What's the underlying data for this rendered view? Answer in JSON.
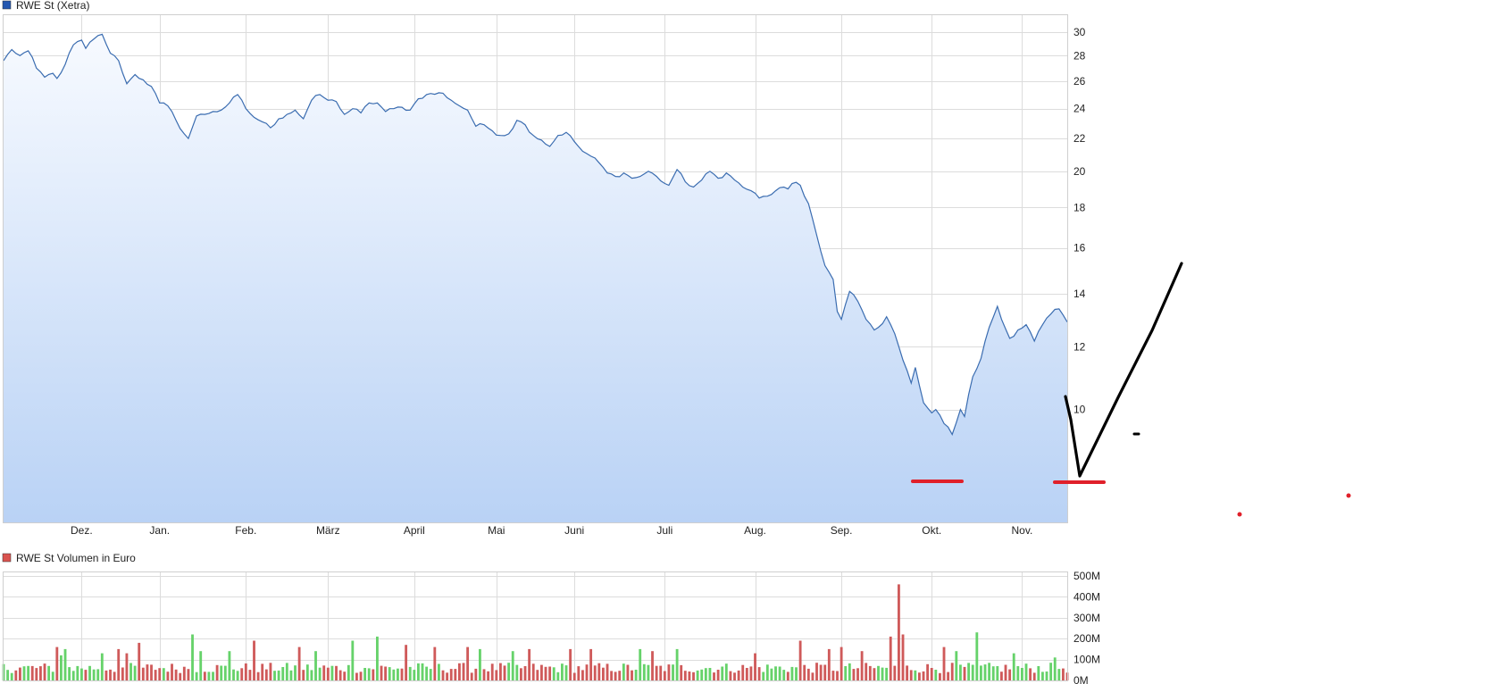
{
  "chart_data": [
    {
      "type": "area",
      "legend": "RWE St (Xetra)",
      "colors": {
        "line": "#3a6cb0",
        "fill_top": "#f7faff",
        "fill_bottom": "#b9d2f5",
        "legend_swatch": "#2457b0"
      },
      "ylim": [
        7.2,
        31.5
      ],
      "y_scale": "log",
      "y_ticks": [
        "30",
        "28",
        "26",
        "24",
        "22",
        "20",
        "18",
        "16",
        "14",
        "12",
        "10"
      ],
      "y_tick_values": [
        30,
        28,
        26,
        24,
        22,
        20,
        18,
        16,
        14,
        12,
        10
      ],
      "x_months": [
        "Dez.",
        "Jan.",
        "Feb.",
        "März",
        "April",
        "Mai",
        "Juni",
        "Juli",
        "Aug.",
        "Sep.",
        "Okt.",
        "Nov."
      ],
      "x_month_index": [
        19,
        38,
        59,
        79,
        100,
        120,
        139,
        161,
        183,
        204,
        226,
        248
      ],
      "grid": true,
      "legend_position": "top-left",
      "x_count": 260,
      "price_anchors": [
        [
          0,
          27.6
        ],
        [
          2,
          28.5
        ],
        [
          4,
          28.0
        ],
        [
          6,
          28.4
        ],
        [
          8,
          27.0
        ],
        [
          10,
          26.3
        ],
        [
          12,
          26.6
        ],
        [
          13,
          26.2
        ],
        [
          15,
          27.3
        ],
        [
          17,
          28.9
        ],
        [
          19,
          29.3
        ],
        [
          20,
          28.6
        ],
        [
          22,
          29.4
        ],
        [
          24,
          29.8
        ],
        [
          26,
          28.2
        ],
        [
          28,
          27.6
        ],
        [
          30,
          25.8
        ],
        [
          32,
          26.5
        ],
        [
          34,
          26.1
        ],
        [
          36,
          25.6
        ],
        [
          38,
          24.4
        ],
        [
          40,
          24.2
        ],
        [
          42,
          23.2
        ],
        [
          44,
          22.3
        ],
        [
          45,
          22.0
        ],
        [
          47,
          23.5
        ],
        [
          49,
          23.6
        ],
        [
          51,
          23.8
        ],
        [
          53,
          23.9
        ],
        [
          55,
          24.4
        ],
        [
          57,
          25.0
        ],
        [
          59,
          24.0
        ],
        [
          61,
          23.4
        ],
        [
          63,
          23.1
        ],
        [
          65,
          22.7
        ],
        [
          67,
          23.3
        ],
        [
          69,
          23.6
        ],
        [
          71,
          23.9
        ],
        [
          73,
          23.3
        ],
        [
          75,
          24.6
        ],
        [
          77,
          25.0
        ],
        [
          79,
          24.6
        ],
        [
          81,
          24.5
        ],
        [
          83,
          23.6
        ],
        [
          85,
          24.0
        ],
        [
          87,
          23.7
        ],
        [
          89,
          24.4
        ],
        [
          91,
          24.4
        ],
        [
          93,
          23.8
        ],
        [
          95,
          24.0
        ],
        [
          97,
          24.1
        ],
        [
          99,
          23.9
        ],
        [
          101,
          24.7
        ],
        [
          103,
          25.0
        ],
        [
          107,
          25.1
        ],
        [
          109,
          24.6
        ],
        [
          111,
          24.2
        ],
        [
          113,
          23.9
        ],
        [
          115,
          22.8
        ],
        [
          117,
          22.9
        ],
        [
          119,
          22.5
        ],
        [
          121,
          22.2
        ],
        [
          123,
          22.3
        ],
        [
          125,
          23.2
        ],
        [
          127,
          22.9
        ],
        [
          129,
          22.2
        ],
        [
          131,
          21.9
        ],
        [
          133,
          21.5
        ],
        [
          135,
          22.2
        ],
        [
          137,
          22.4
        ],
        [
          139,
          21.8
        ],
        [
          141,
          21.2
        ],
        [
          143,
          20.9
        ],
        [
          145,
          20.5
        ],
        [
          147,
          19.9
        ],
        [
          149,
          19.7
        ],
        [
          151,
          19.9
        ],
        [
          153,
          19.6
        ],
        [
          155,
          19.7
        ],
        [
          157,
          20.0
        ],
        [
          159,
          19.7
        ],
        [
          161,
          19.3
        ],
        [
          162,
          19.2
        ],
        [
          164,
          20.1
        ],
        [
          166,
          19.4
        ],
        [
          168,
          19.1
        ],
        [
          170,
          19.5
        ],
        [
          172,
          20.0
        ],
        [
          174,
          19.6
        ],
        [
          176,
          19.9
        ],
        [
          178,
          19.5
        ],
        [
          180,
          19.1
        ],
        [
          182,
          18.9
        ],
        [
          184,
          18.5
        ],
        [
          186,
          18.6
        ],
        [
          188,
          18.9
        ],
        [
          190,
          19.1
        ],
        [
          191,
          19.0
        ],
        [
          192,
          19.3
        ],
        [
          194,
          19.2
        ],
        [
          195,
          18.6
        ],
        [
          196,
          18.2
        ],
        [
          198,
          16.6
        ],
        [
          200,
          15.2
        ],
        [
          202,
          14.6
        ],
        [
          203,
          13.3
        ],
        [
          204,
          13.0
        ],
        [
          206,
          14.1
        ],
        [
          208,
          13.7
        ],
        [
          210,
          13.0
        ],
        [
          212,
          12.6
        ],
        [
          213,
          12.7
        ],
        [
          215,
          13.1
        ],
        [
          216,
          12.8
        ],
        [
          218,
          12.0
        ],
        [
          220,
          11.2
        ],
        [
          221,
          10.8
        ],
        [
          222,
          11.3
        ],
        [
          224,
          10.2
        ],
        [
          226,
          9.9
        ],
        [
          227,
          10.0
        ],
        [
          229,
          9.6
        ],
        [
          230,
          9.5
        ],
        [
          231,
          9.3
        ],
        [
          233,
          10.0
        ],
        [
          234,
          9.8
        ],
        [
          236,
          11.0
        ],
        [
          238,
          11.6
        ],
        [
          240,
          12.7
        ],
        [
          242,
          13.5
        ],
        [
          243,
          13.0
        ],
        [
          245,
          12.3
        ],
        [
          247,
          12.6
        ],
        [
          249,
          12.8
        ],
        [
          251,
          12.2
        ],
        [
          253,
          12.8
        ],
        [
          255,
          13.2
        ],
        [
          257,
          13.4
        ],
        [
          259,
          12.9
        ]
      ],
      "annotations": "hand-drawn red horizontal support lines near lows and black V-shaped projection line with small marks"
    },
    {
      "type": "bar",
      "legend": "RWE St Volumen in Euro",
      "colors": {
        "up": "#66d26a",
        "down": "#cf5a5a",
        "legend_swatch": "#d9534f"
      },
      "ylim": [
        0,
        500
      ],
      "y_ticks": [
        "500M",
        "400M",
        "300M",
        "200M",
        "100M",
        "0M"
      ],
      "y_tick_values": [
        500,
        400,
        300,
        200,
        100,
        0
      ],
      "unit": "M",
      "grid": true,
      "legend_position": "top-left",
      "spikes_millions": [
        [
          13,
          160
        ],
        [
          14,
          120
        ],
        [
          15,
          150
        ],
        [
          24,
          130
        ],
        [
          28,
          150
        ],
        [
          30,
          130
        ],
        [
          33,
          180
        ],
        [
          46,
          220
        ],
        [
          48,
          140
        ],
        [
          55,
          140
        ],
        [
          61,
          190
        ],
        [
          72,
          160
        ],
        [
          76,
          140
        ],
        [
          85,
          190
        ],
        [
          91,
          210
        ],
        [
          98,
          170
        ],
        [
          105,
          160
        ],
        [
          113,
          160
        ],
        [
          116,
          150
        ],
        [
          124,
          140
        ],
        [
          128,
          150
        ],
        [
          138,
          150
        ],
        [
          143,
          150
        ],
        [
          155,
          150
        ],
        [
          158,
          140
        ],
        [
          164,
          150
        ],
        [
          183,
          130
        ],
        [
          194,
          190
        ],
        [
          201,
          150
        ],
        [
          204,
          160
        ],
        [
          209,
          140
        ],
        [
          216,
          210
        ],
        [
          218,
          460
        ],
        [
          219,
          220
        ],
        [
          229,
          160
        ],
        [
          232,
          140
        ],
        [
          237,
          230
        ],
        [
          246,
          130
        ],
        [
          256,
          110
        ]
      ]
    }
  ]
}
